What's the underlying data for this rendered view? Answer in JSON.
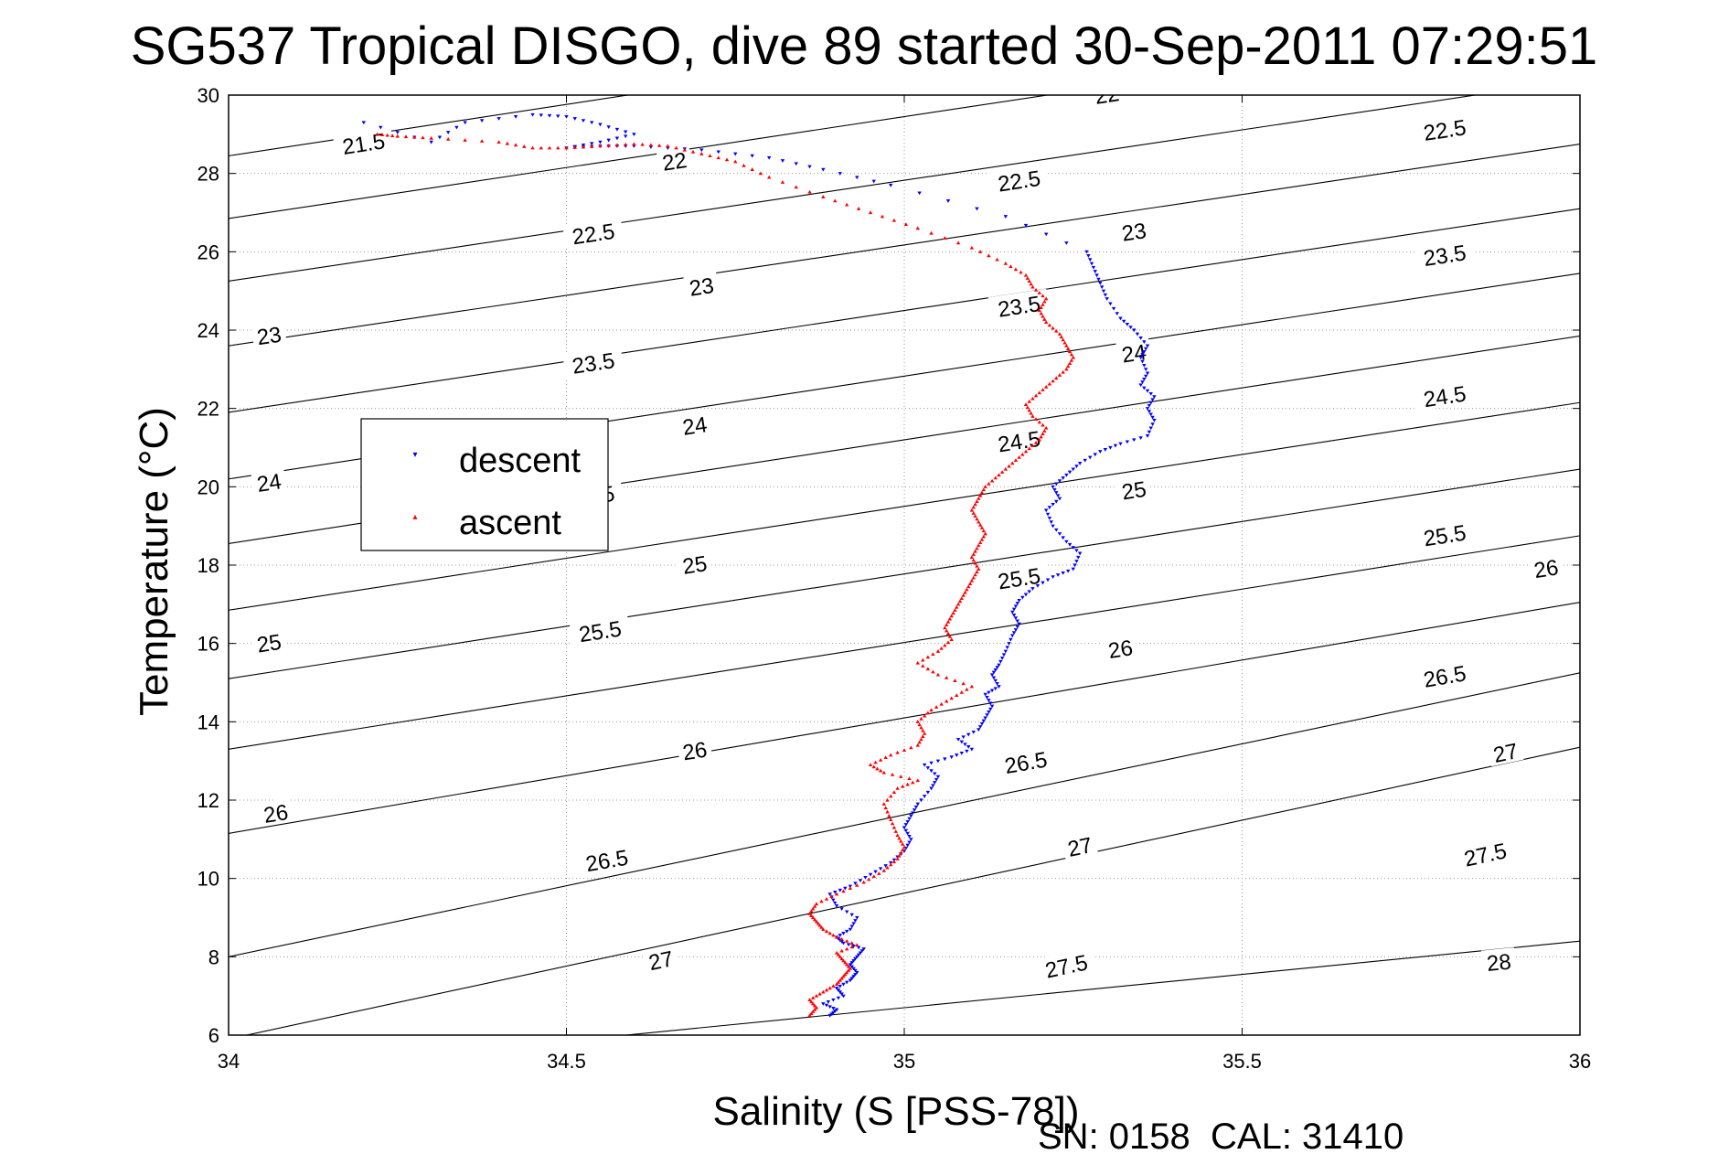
{
  "chart_data": {
    "type": "scatter",
    "title": "SG537 Tropical DISGO, dive 89 started 30-Sep-2011 07:29:51",
    "xlabel": "Salinity (S [PSS-78])",
    "ylabel": "Temperature (°C)",
    "xlim": [
      34,
      36
    ],
    "ylim": [
      6,
      30
    ],
    "xticks": [
      34,
      34.5,
      35,
      35.5,
      36
    ],
    "xtick_labels": [
      "34",
      "34.5",
      "35",
      "35.5",
      "36"
    ],
    "yticks": [
      6,
      8,
      10,
      12,
      14,
      16,
      18,
      20,
      22,
      24,
      26,
      28,
      30
    ],
    "ytick_labels": [
      "6",
      "8",
      "10",
      "12",
      "14",
      "16",
      "18",
      "20",
      "22",
      "24",
      "26",
      "28",
      "30"
    ],
    "grid": true,
    "legend": {
      "placement": "upper-left",
      "entries": [
        "descent",
        "ascent"
      ]
    },
    "footer_text": "SN: 0158  CAL: 31410",
    "colors": {
      "descent": "#0000ff",
      "ascent": "#ff0000",
      "contour": "#000000"
    },
    "contours": [
      {
        "level": "21.5",
        "left_t": 28.45,
        "right_t": 33.7,
        "labels": [
          [
            34.2,
            28.75
          ]
        ]
      },
      {
        "level": "22",
        "left_t": 26.85,
        "right_t": 32.05,
        "labels": [
          [
            34.66,
            28.3
          ],
          [
            35.3,
            30.0
          ]
        ]
      },
      {
        "level": "22.5",
        "left_t": 25.25,
        "right_t": 30.4,
        "labels": [
          [
            34.54,
            26.45
          ],
          [
            35.17,
            27.8
          ],
          [
            35.8,
            29.1
          ]
        ]
      },
      {
        "level": "23",
        "left_t": 23.6,
        "right_t": 28.75,
        "labels": [
          [
            34.06,
            23.85
          ],
          [
            34.7,
            25.1
          ],
          [
            35.34,
            26.5
          ]
        ]
      },
      {
        "level": "23.5",
        "left_t": 21.9,
        "right_t": 27.1,
        "labels": [
          [
            34.54,
            23.15
          ],
          [
            35.17,
            24.6
          ],
          [
            35.8,
            25.9
          ]
        ]
      },
      {
        "level": "24",
        "left_t": 20.2,
        "right_t": 25.45,
        "labels": [
          [
            34.06,
            20.1
          ],
          [
            34.69,
            21.55
          ],
          [
            35.34,
            23.4
          ]
        ]
      },
      {
        "level": "24.5",
        "left_t": 18.55,
        "right_t": 23.85,
        "labels": [
          [
            34.54,
            19.75
          ],
          [
            35.17,
            21.15
          ],
          [
            35.8,
            22.3
          ]
        ]
      },
      {
        "level": "25",
        "left_t": 16.85,
        "right_t": 22.15,
        "labels": [
          [
            34.06,
            16.0
          ],
          [
            34.69,
            18.0
          ],
          [
            35.34,
            19.9
          ]
        ]
      },
      {
        "level": "25.5",
        "left_t": 15.1,
        "right_t": 20.45,
        "labels": [
          [
            34.55,
            16.3
          ],
          [
            35.17,
            17.65
          ],
          [
            35.8,
            18.75
          ]
        ]
      },
      {
        "level": "26",
        "left_t": 13.3,
        "right_t": 18.75,
        "labels": [
          [
            34.07,
            11.65
          ],
          [
            34.69,
            13.25
          ],
          [
            35.32,
            15.85
          ],
          [
            35.95,
            17.9
          ]
        ]
      },
      {
        "level": "26.5",
        "left_t": 11.15,
        "right_t": 17.05,
        "labels": [
          [
            34.56,
            10.45
          ],
          [
            35.18,
            12.95
          ],
          [
            35.8,
            15.15
          ]
        ]
      },
      {
        "level": "27",
        "left_t": 8.0,
        "right_t": 15.25,
        "labels": [
          [
            34.64,
            7.9
          ],
          [
            35.26,
            10.8
          ],
          [
            35.89,
            13.2
          ]
        ]
      },
      {
        "level": "27.5",
        "left_t": 5.9,
        "right_t": 13.35,
        "labels": [
          [
            35.24,
            7.75
          ],
          [
            35.86,
            10.6
          ]
        ]
      },
      {
        "level": "28",
        "left_t": 5.0,
        "right_t": 8.4,
        "labels": [
          [
            35.88,
            7.85
          ]
        ]
      }
    ],
    "series": [
      {
        "name": "descent",
        "points": [
          [
            34.89,
            6.5
          ],
          [
            34.9,
            6.65
          ],
          [
            34.88,
            6.8
          ],
          [
            34.91,
            7.0
          ],
          [
            34.9,
            7.2
          ],
          [
            34.92,
            7.4
          ],
          [
            34.93,
            7.6
          ],
          [
            34.92,
            7.8
          ],
          [
            34.93,
            8.0
          ],
          [
            34.94,
            8.2
          ],
          [
            34.91,
            8.35
          ],
          [
            34.9,
            8.5
          ],
          [
            34.92,
            8.7
          ],
          [
            34.93,
            9.0
          ],
          [
            34.9,
            9.3
          ],
          [
            34.89,
            9.6
          ],
          [
            34.92,
            9.8
          ],
          [
            34.95,
            10.1
          ],
          [
            34.98,
            10.4
          ],
          [
            35.0,
            10.7
          ],
          [
            35.01,
            11.0
          ],
          [
            35.0,
            11.3
          ],
          [
            35.01,
            11.6
          ],
          [
            35.02,
            11.9
          ],
          [
            35.04,
            12.3
          ],
          [
            35.05,
            12.6
          ],
          [
            35.03,
            12.9
          ],
          [
            35.07,
            13.1
          ],
          [
            35.1,
            13.3
          ],
          [
            35.08,
            13.55
          ],
          [
            35.11,
            13.8
          ],
          [
            35.12,
            14.1
          ],
          [
            35.13,
            14.4
          ],
          [
            35.12,
            14.7
          ],
          [
            35.14,
            14.9
          ],
          [
            35.13,
            15.2
          ],
          [
            35.14,
            15.45
          ],
          [
            35.15,
            15.8
          ],
          [
            35.16,
            16.2
          ],
          [
            35.17,
            16.5
          ],
          [
            35.16,
            16.8
          ],
          [
            35.17,
            17.1
          ],
          [
            35.19,
            17.4
          ],
          [
            35.22,
            17.7
          ],
          [
            35.25,
            17.9
          ],
          [
            35.26,
            18.3
          ],
          [
            35.24,
            18.6
          ],
          [
            35.22,
            19.0
          ],
          [
            35.21,
            19.4
          ],
          [
            35.23,
            19.7
          ],
          [
            35.22,
            20.0
          ],
          [
            35.24,
            20.3
          ],
          [
            35.26,
            20.6
          ],
          [
            35.29,
            20.9
          ],
          [
            35.32,
            21.1
          ],
          [
            35.36,
            21.3
          ],
          [
            35.37,
            21.7
          ],
          [
            35.36,
            22.0
          ],
          [
            35.37,
            22.3
          ],
          [
            35.35,
            22.6
          ],
          [
            35.36,
            22.9
          ],
          [
            35.35,
            23.3
          ],
          [
            35.36,
            23.6
          ],
          [
            35.34,
            24.0
          ],
          [
            35.32,
            24.3
          ],
          [
            35.3,
            24.8
          ],
          [
            35.29,
            25.2
          ],
          [
            35.28,
            25.6
          ],
          [
            35.27,
            26.0
          ],
          [
            35.15,
            26.9
          ],
          [
            34.98,
            27.7
          ],
          [
            34.88,
            28.1
          ],
          [
            34.8,
            28.4
          ],
          [
            34.7,
            28.6
          ],
          [
            34.6,
            28.7
          ],
          [
            34.55,
            28.7
          ],
          [
            34.5,
            28.65
          ],
          [
            34.55,
            28.8
          ],
          [
            34.6,
            29.0
          ],
          [
            34.55,
            29.25
          ],
          [
            34.5,
            29.45
          ],
          [
            34.45,
            29.5
          ],
          [
            34.35,
            29.3
          ],
          [
            34.3,
            28.8
          ],
          [
            34.2,
            29.3
          ]
        ]
      },
      {
        "name": "ascent",
        "points": [
          [
            34.86,
            6.5
          ],
          [
            34.87,
            6.7
          ],
          [
            34.86,
            6.9
          ],
          [
            34.88,
            7.1
          ],
          [
            34.9,
            7.3
          ],
          [
            34.91,
            7.5
          ],
          [
            34.92,
            7.7
          ],
          [
            34.91,
            7.9
          ],
          [
            34.9,
            8.1
          ],
          [
            34.93,
            8.3
          ],
          [
            34.9,
            8.5
          ],
          [
            34.88,
            8.7
          ],
          [
            34.87,
            8.9
          ],
          [
            34.86,
            9.1
          ],
          [
            34.87,
            9.35
          ],
          [
            34.9,
            9.6
          ],
          [
            34.94,
            9.9
          ],
          [
            34.97,
            10.2
          ],
          [
            34.99,
            10.5
          ],
          [
            35.0,
            10.8
          ],
          [
            34.99,
            11.1
          ],
          [
            34.98,
            11.5
          ],
          [
            34.97,
            11.9
          ],
          [
            34.99,
            12.3
          ],
          [
            35.02,
            12.5
          ],
          [
            34.97,
            12.7
          ],
          [
            34.95,
            12.9
          ],
          [
            34.98,
            13.15
          ],
          [
            35.02,
            13.4
          ],
          [
            35.03,
            13.7
          ],
          [
            35.02,
            14.0
          ],
          [
            35.04,
            14.3
          ],
          [
            35.07,
            14.6
          ],
          [
            35.1,
            14.9
          ],
          [
            35.05,
            15.2
          ],
          [
            35.02,
            15.5
          ],
          [
            35.05,
            15.8
          ],
          [
            35.07,
            16.1
          ],
          [
            35.06,
            16.4
          ],
          [
            35.07,
            16.7
          ],
          [
            35.08,
            17.0
          ],
          [
            35.09,
            17.3
          ],
          [
            35.1,
            17.6
          ],
          [
            35.11,
            17.9
          ],
          [
            35.1,
            18.2
          ],
          [
            35.11,
            18.5
          ],
          [
            35.12,
            18.8
          ],
          [
            35.11,
            19.1
          ],
          [
            35.1,
            19.4
          ],
          [
            35.11,
            19.7
          ],
          [
            35.12,
            20.0
          ],
          [
            35.14,
            20.3
          ],
          [
            35.16,
            20.6
          ],
          [
            35.18,
            20.9
          ],
          [
            35.2,
            21.2
          ],
          [
            35.21,
            21.5
          ],
          [
            35.19,
            21.8
          ],
          [
            35.18,
            22.1
          ],
          [
            35.2,
            22.4
          ],
          [
            35.22,
            22.7
          ],
          [
            35.24,
            23.0
          ],
          [
            35.25,
            23.3
          ],
          [
            35.24,
            23.6
          ],
          [
            35.23,
            23.9
          ],
          [
            35.21,
            24.2
          ],
          [
            35.2,
            24.5
          ],
          [
            35.21,
            24.8
          ],
          [
            35.19,
            25.1
          ],
          [
            35.18,
            25.4
          ],
          [
            35.15,
            25.7
          ],
          [
            35.1,
            26.1
          ],
          [
            35.02,
            26.6
          ],
          [
            34.95,
            27.0
          ],
          [
            34.88,
            27.4
          ],
          [
            34.8,
            27.9
          ],
          [
            34.75,
            28.3
          ],
          [
            34.7,
            28.5
          ],
          [
            34.65,
            28.7
          ],
          [
            34.6,
            28.75
          ],
          [
            34.55,
            28.7
          ],
          [
            34.5,
            28.65
          ],
          [
            34.45,
            28.65
          ],
          [
            34.4,
            28.8
          ],
          [
            34.3,
            28.9
          ],
          [
            34.25,
            28.95
          ],
          [
            34.22,
            29.0
          ]
        ]
      }
    ]
  }
}
